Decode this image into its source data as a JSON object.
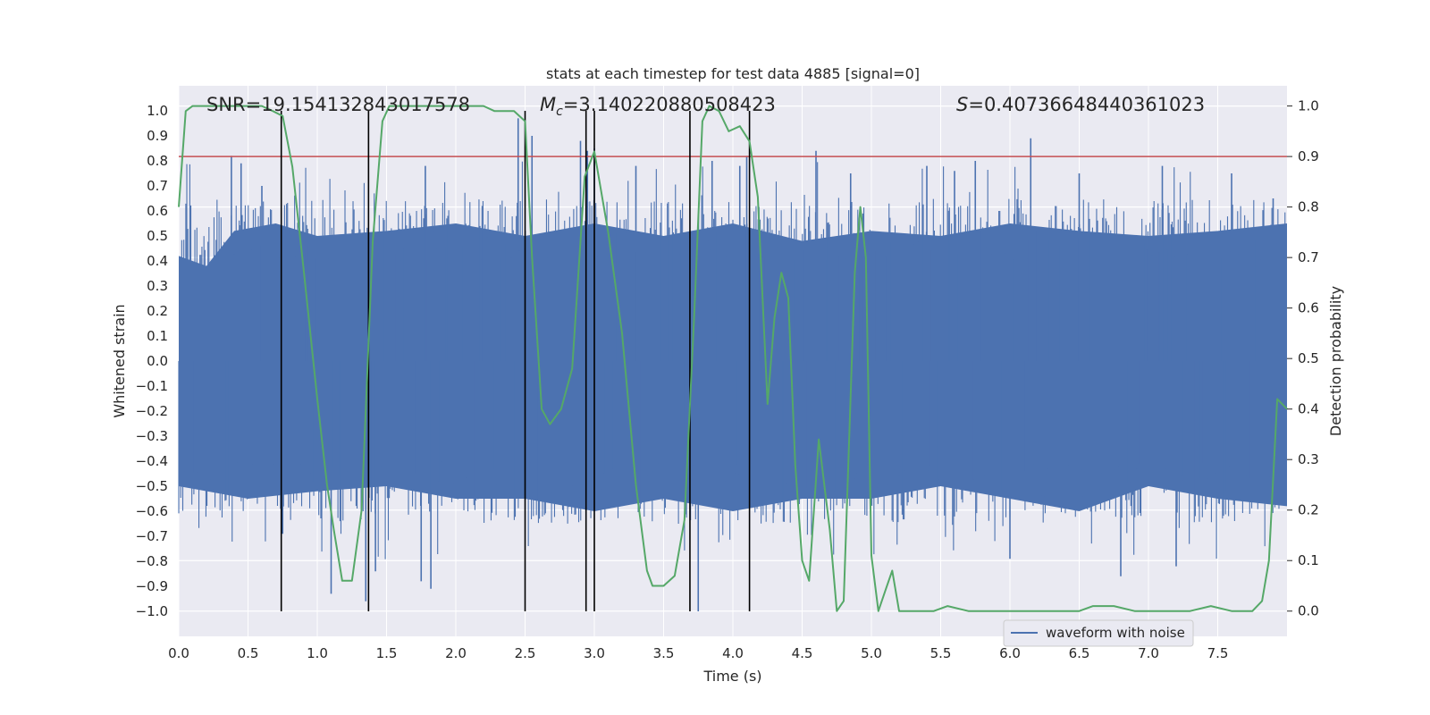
{
  "chart_data": {
    "type": "line",
    "title": "stats at each timestep for test data 4885 [signal=0]",
    "xlabel": "Time (s)",
    "ylabel": "Whitened strain",
    "ylabel_right": "Detection probability",
    "xlim": [
      0.0,
      8.0
    ],
    "ylim": [
      -1.1,
      1.1
    ],
    "ylim_right": [
      -0.05,
      1.04
    ],
    "x_ticks": [
      "0.0",
      "0.5",
      "1.0",
      "1.5",
      "2.0",
      "2.5",
      "3.0",
      "3.5",
      "4.0",
      "4.5",
      "5.0",
      "5.5",
      "6.0",
      "6.5",
      "7.0",
      "7.5"
    ],
    "y_ticks": [
      "1.0",
      "0.9",
      "0.8",
      "0.7",
      "0.6",
      "0.5",
      "0.4",
      "0.3",
      "0.2",
      "0.1",
      "0.0",
      "-0.1",
      "-0.2",
      "-0.3",
      "-0.4",
      "-0.5",
      "-0.6",
      "-0.7",
      "-0.8",
      "-0.9",
      "-1.0"
    ],
    "y_ticks_right": [
      "1.0",
      "0.9",
      "0.8",
      "0.7",
      "0.6",
      "0.5",
      "0.4",
      "0.3",
      "0.2",
      "0.1",
      "0.0"
    ],
    "annotations": {
      "snr": "SNR=19.154132843017578",
      "mc_symbol": "M",
      "mc_sub": "c",
      "mc_value": "=3.140220880508423",
      "s_symbol": "S",
      "s_value": "=0.40736648440361023"
    },
    "legend": {
      "label": "waveform with noise",
      "position": "lower-right"
    },
    "threshold": {
      "axis": "right",
      "value": 0.9,
      "color": "#c44e52"
    },
    "event_lines_x": [
      0.74,
      1.37,
      2.5,
      2.94,
      3.0,
      3.69,
      4.12
    ],
    "event_line_range": [
      -1.0,
      1.0
    ],
    "waveform": {
      "name": "waveform with noise",
      "color": "#4c72b0",
      "envelope_upper": [
        [
          0.0,
          0.42
        ],
        [
          0.2,
          0.38
        ],
        [
          0.4,
          0.52
        ],
        [
          0.7,
          0.55
        ],
        [
          1.0,
          0.5
        ],
        [
          1.5,
          0.52
        ],
        [
          2.0,
          0.55
        ],
        [
          2.5,
          0.5
        ],
        [
          3.0,
          0.55
        ],
        [
          3.5,
          0.5
        ],
        [
          4.0,
          0.55
        ],
        [
          4.5,
          0.48
        ],
        [
          5.0,
          0.52
        ],
        [
          5.5,
          0.5
        ],
        [
          6.0,
          0.55
        ],
        [
          6.5,
          0.52
        ],
        [
          7.0,
          0.5
        ],
        [
          7.5,
          0.52
        ],
        [
          8.0,
          0.55
        ]
      ],
      "envelope_lower": [
        [
          0.0,
          -0.5
        ],
        [
          0.5,
          -0.55
        ],
        [
          1.0,
          -0.52
        ],
        [
          1.5,
          -0.5
        ],
        [
          2.0,
          -0.55
        ],
        [
          2.5,
          -0.55
        ],
        [
          3.0,
          -0.6
        ],
        [
          3.5,
          -0.55
        ],
        [
          4.0,
          -0.6
        ],
        [
          4.5,
          -0.55
        ],
        [
          5.0,
          -0.55
        ],
        [
          5.5,
          -0.5
        ],
        [
          6.0,
          -0.55
        ],
        [
          6.5,
          -0.6
        ],
        [
          7.0,
          -0.5
        ],
        [
          7.5,
          -0.55
        ],
        [
          8.0,
          -0.58
        ]
      ],
      "spikes": [
        [
          0.38,
          0.82
        ],
        [
          0.45,
          0.79
        ],
        [
          0.6,
          0.7
        ],
        [
          0.75,
          -0.69
        ],
        [
          1.1,
          -0.93
        ],
        [
          1.35,
          -0.96
        ],
        [
          1.42,
          -0.84
        ],
        [
          1.75,
          -0.88
        ],
        [
          1.78,
          0.78
        ],
        [
          1.82,
          -0.91
        ],
        [
          2.45,
          0.97
        ],
        [
          2.55,
          0.9
        ],
        [
          2.9,
          0.88
        ],
        [
          2.95,
          0.84
        ],
        [
          3.0,
          0.85
        ],
        [
          3.3,
          0.78
        ],
        [
          3.75,
          -1.0
        ],
        [
          3.85,
          0.8
        ],
        [
          4.05,
          0.78
        ],
        [
          4.1,
          0.82
        ],
        [
          4.6,
          0.84
        ],
        [
          4.85,
          0.75
        ],
        [
          5.4,
          0.78
        ],
        [
          5.6,
          0.76
        ],
        [
          5.75,
          0.8
        ],
        [
          6.0,
          -0.79
        ],
        [
          6.15,
          0.89
        ],
        [
          6.5,
          0.75
        ],
        [
          6.8,
          -0.86
        ],
        [
          7.1,
          0.78
        ],
        [
          7.2,
          -0.82
        ],
        [
          7.6,
          0.75
        ],
        [
          7.9,
          0.65
        ]
      ]
    },
    "probability": {
      "name": "detection probability",
      "color": "#55a868",
      "points": [
        [
          0.0,
          0.8
        ],
        [
          0.05,
          0.99
        ],
        [
          0.1,
          1.0
        ],
        [
          0.2,
          1.0
        ],
        [
          0.3,
          1.0
        ],
        [
          0.4,
          1.0
        ],
        [
          0.5,
          1.0
        ],
        [
          0.6,
          1.0
        ],
        [
          0.68,
          0.99
        ],
        [
          0.75,
          0.98
        ],
        [
          0.82,
          0.88
        ],
        [
          0.9,
          0.68
        ],
        [
          1.0,
          0.42
        ],
        [
          1.07,
          0.25
        ],
        [
          1.12,
          0.16
        ],
        [
          1.18,
          0.06
        ],
        [
          1.25,
          0.06
        ],
        [
          1.32,
          0.2
        ],
        [
          1.4,
          0.73
        ],
        [
          1.47,
          0.97
        ],
        [
          1.52,
          1.0
        ],
        [
          1.6,
          1.0
        ],
        [
          1.8,
          1.0
        ],
        [
          2.0,
          1.0
        ],
        [
          2.2,
          1.0
        ],
        [
          2.28,
          0.99
        ],
        [
          2.42,
          0.99
        ],
        [
          2.5,
          0.97
        ],
        [
          2.55,
          0.7
        ],
        [
          2.62,
          0.4
        ],
        [
          2.68,
          0.37
        ],
        [
          2.76,
          0.4
        ],
        [
          2.84,
          0.48
        ],
        [
          2.93,
          0.86
        ],
        [
          3.0,
          0.91
        ],
        [
          3.1,
          0.75
        ],
        [
          3.2,
          0.55
        ],
        [
          3.3,
          0.25
        ],
        [
          3.38,
          0.08
        ],
        [
          3.42,
          0.05
        ],
        [
          3.5,
          0.05
        ],
        [
          3.58,
          0.07
        ],
        [
          3.65,
          0.18
        ],
        [
          3.72,
          0.58
        ],
        [
          3.78,
          0.97
        ],
        [
          3.83,
          1.0
        ],
        [
          3.9,
          0.99
        ],
        [
          3.97,
          0.95
        ],
        [
          4.05,
          0.96
        ],
        [
          4.12,
          0.93
        ],
        [
          4.18,
          0.82
        ],
        [
          4.25,
          0.41
        ],
        [
          4.3,
          0.58
        ],
        [
          4.35,
          0.67
        ],
        [
          4.4,
          0.62
        ],
        [
          4.45,
          0.29
        ],
        [
          4.5,
          0.1
        ],
        [
          4.55,
          0.06
        ],
        [
          4.62,
          0.34
        ],
        [
          4.7,
          0.16
        ],
        [
          4.75,
          0.0
        ],
        [
          4.8,
          0.02
        ],
        [
          4.88,
          0.67
        ],
        [
          4.92,
          0.8
        ],
        [
          4.96,
          0.7
        ],
        [
          5.0,
          0.11
        ],
        [
          5.05,
          0.0
        ],
        [
          5.1,
          0.04
        ],
        [
          5.15,
          0.08
        ],
        [
          5.2,
          0.0
        ],
        [
          5.3,
          0.0
        ],
        [
          5.45,
          0.0
        ],
        [
          5.55,
          0.01
        ],
        [
          5.7,
          0.0
        ],
        [
          5.9,
          0.0
        ],
        [
          6.1,
          0.0
        ],
        [
          6.3,
          0.0
        ],
        [
          6.5,
          0.0
        ],
        [
          6.6,
          0.01
        ],
        [
          6.75,
          0.01
        ],
        [
          6.9,
          0.0
        ],
        [
          7.1,
          0.0
        ],
        [
          7.3,
          0.0
        ],
        [
          7.45,
          0.01
        ],
        [
          7.6,
          0.0
        ],
        [
          7.75,
          0.0
        ],
        [
          7.82,
          0.02
        ],
        [
          7.87,
          0.1
        ],
        [
          7.93,
          0.42
        ],
        [
          8.0,
          0.4
        ]
      ]
    },
    "colors": {
      "plot_bg": "#eaeaf2",
      "grid": "#ffffff",
      "event_line": "#000000"
    }
  }
}
